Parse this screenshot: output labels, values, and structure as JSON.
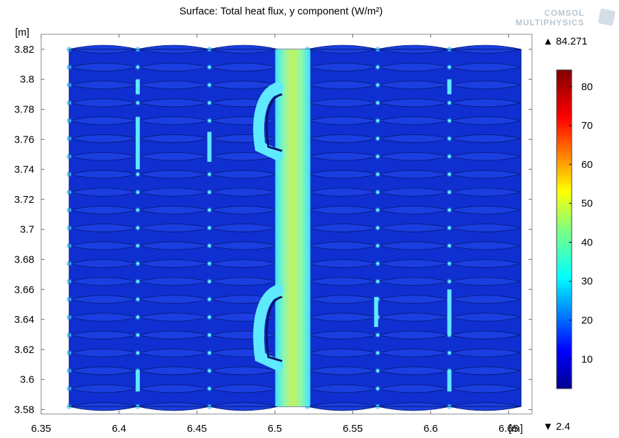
{
  "chart_data": {
    "type": "heatmap",
    "title": "Surface: Total heat flux, y component (W/m²)",
    "xlabel": "[m]",
    "ylabel": "[m]",
    "xlim": [
      6.35,
      6.665
    ],
    "ylim": [
      3.577,
      3.83
    ],
    "x_ticks": [
      "6.35",
      "6.4",
      "6.45",
      "6.5",
      "6.55",
      "6.6",
      "6.65"
    ],
    "x_tick_values": [
      6.35,
      6.4,
      6.45,
      6.5,
      6.55,
      6.6,
      6.65
    ],
    "y_ticks": [
      "3.58",
      "3.6",
      "3.62",
      "3.64",
      "3.66",
      "3.68",
      "3.7",
      "3.72",
      "3.74",
      "3.76",
      "3.78",
      "3.8",
      "3.82"
    ],
    "y_tick_values": [
      3.58,
      3.6,
      3.62,
      3.64,
      3.66,
      3.68,
      3.7,
      3.72,
      3.74,
      3.76,
      3.78,
      3.8,
      3.82
    ],
    "domain": {
      "x": [
        6.368,
        6.658
      ],
      "y": [
        3.582,
        3.82
      ]
    },
    "hot_channel": {
      "x": [
        6.502,
        6.521
      ],
      "y": [
        3.582,
        3.82
      ],
      "value": 40
    },
    "background_value": 6,
    "grid": false,
    "colorbar": {
      "max_label": "84.271",
      "min_label": "2.4",
      "max": 84.271,
      "min": 2.4,
      "ticks": [
        "10",
        "20",
        "30",
        "40",
        "50",
        "60",
        "70",
        "80"
      ],
      "tick_values": [
        10,
        20,
        30,
        40,
        50,
        60,
        70,
        80
      ],
      "colormap": "rainbow",
      "placement": "right"
    }
  },
  "logo": {
    "line1": "COMSOL",
    "line2": "MULTIPHYSICS"
  },
  "colors": {
    "background_field": "#0f2fd0",
    "channel": "#b5f06a",
    "channel_edge": "#38e1ff",
    "hotspot": "#5ee8ff"
  }
}
